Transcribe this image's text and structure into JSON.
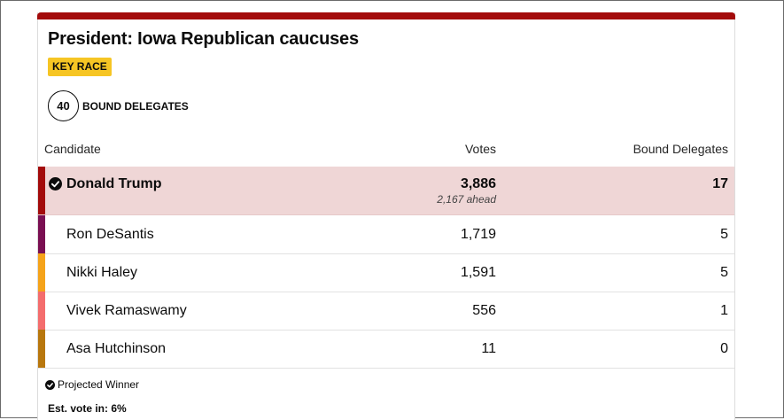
{
  "race": {
    "title": "President: Iowa Republican caucuses",
    "badge": "KEY RACE",
    "delegates_count": "40",
    "delegates_label": "BOUND DELEGATES"
  },
  "table": {
    "headers": {
      "candidate": "Candidate",
      "votes": "Votes",
      "delegates": "Bound Delegates"
    },
    "rows": [
      {
        "name": "Donald Trump",
        "votes": "3,886",
        "ahead": "2,167 ahead",
        "delegates": "17",
        "color": "#a30b0b",
        "winner": true
      },
      {
        "name": "Ron DeSantis",
        "votes": "1,719",
        "delegates": "5",
        "color": "#7a0f52"
      },
      {
        "name": "Nikki Haley",
        "votes": "1,591",
        "delegates": "5",
        "color": "#f5a31a"
      },
      {
        "name": "Vivek Ramaswamy",
        "votes": "556",
        "delegates": "1",
        "color": "#f46d6d"
      },
      {
        "name": "Asa Hutchinson",
        "votes": "11",
        "delegates": "0",
        "color": "#b8770d"
      }
    ]
  },
  "footer": {
    "projected_winner": "Projected Winner",
    "est_vote": "Est. vote in: 6%"
  },
  "colors": {
    "accent": "#a30b0b",
    "badge": "#f6c524",
    "lead_row_bg": "#efd6d6"
  }
}
